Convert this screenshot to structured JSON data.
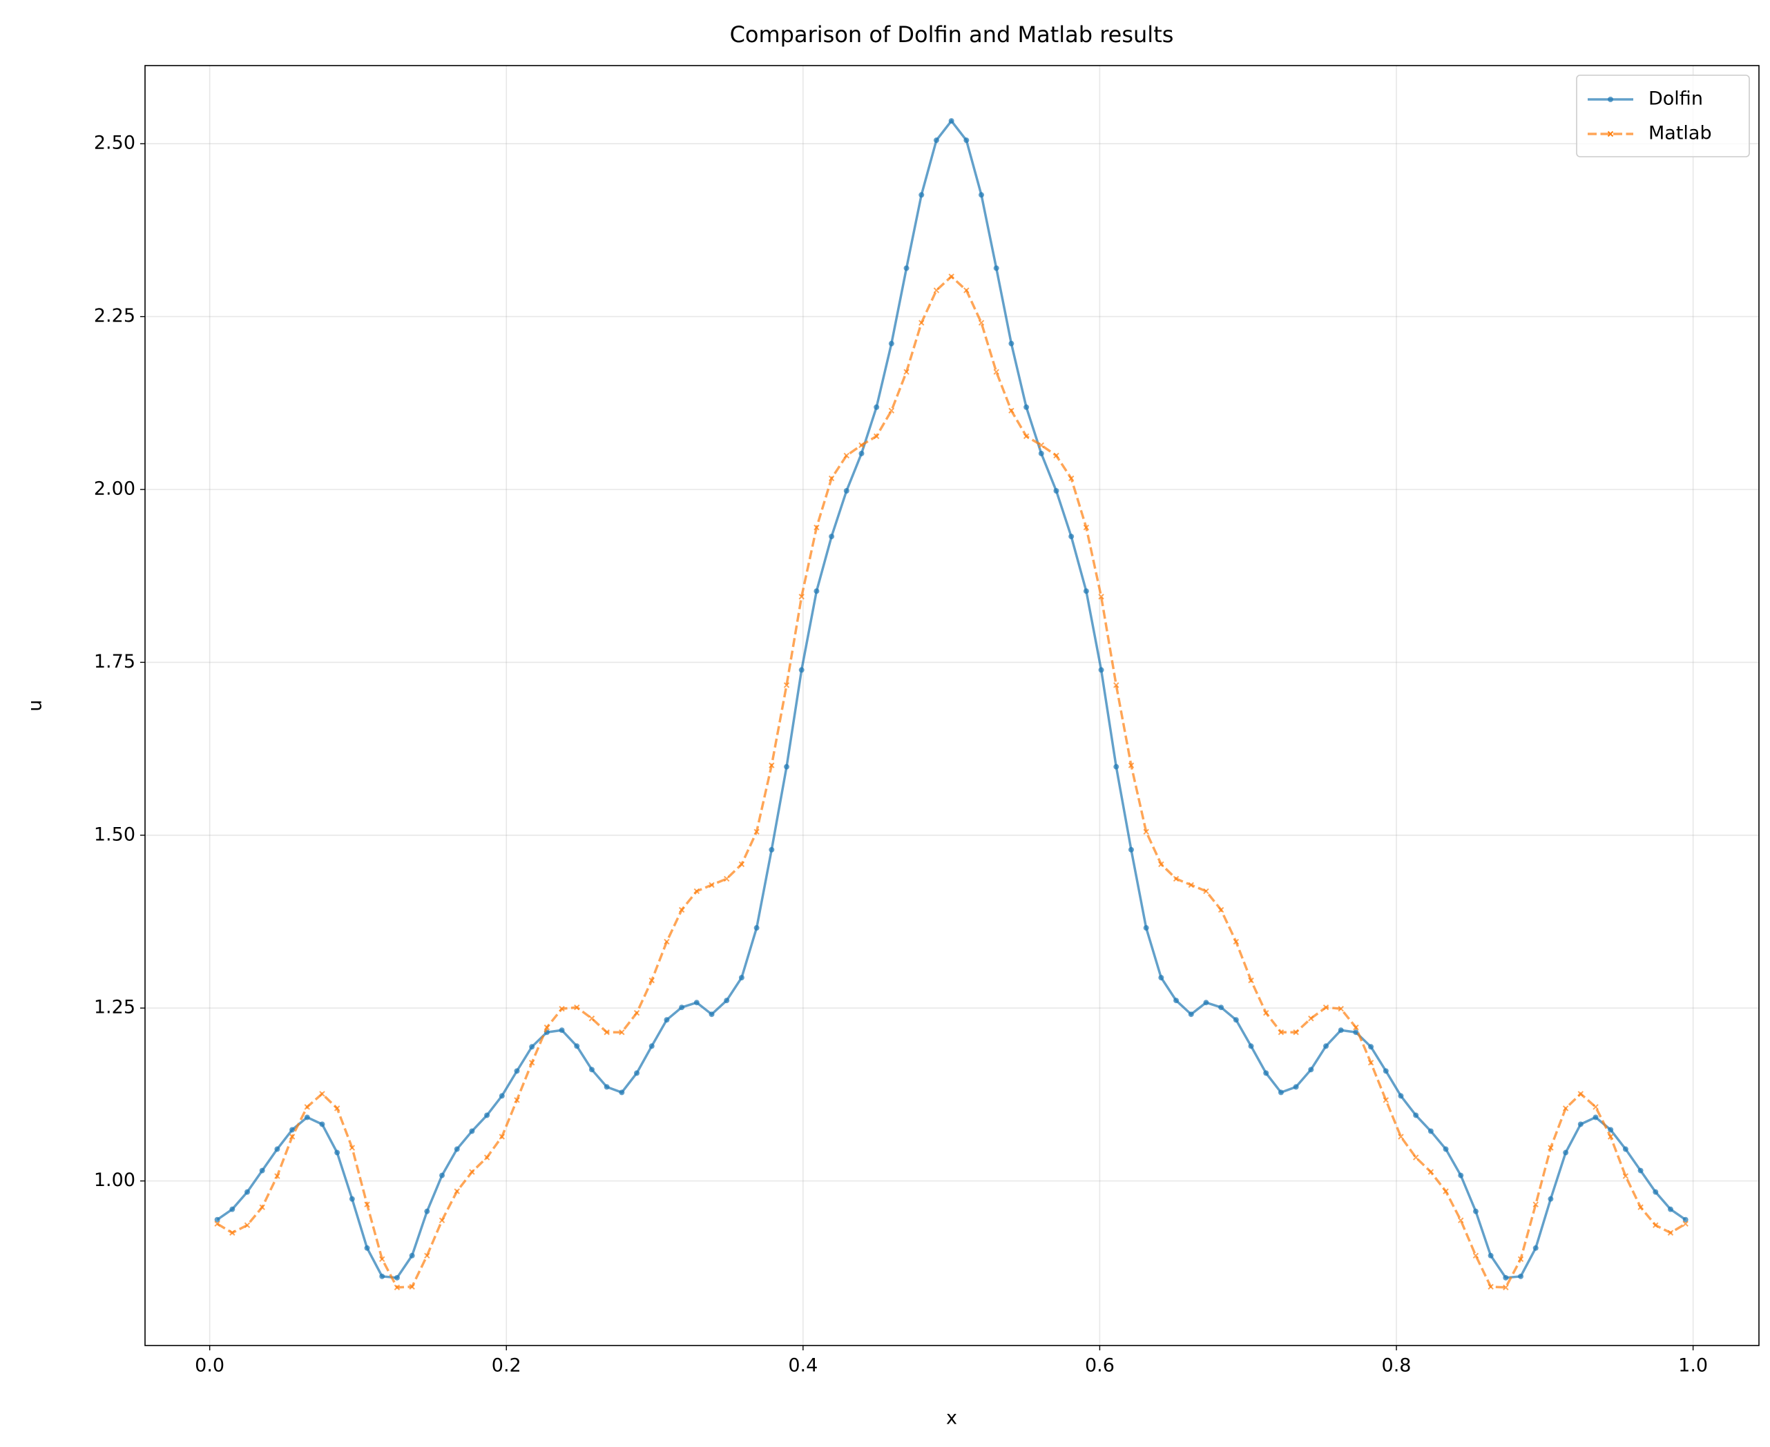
{
  "chart_data": {
    "type": "line",
    "title": "Comparison of Dolfin and Matlab results",
    "x_label": "x",
    "y_label": "u",
    "x": [
      0.0051,
      0.0152,
      0.0253,
      0.0354,
      0.0455,
      0.0556,
      0.0657,
      0.0758,
      0.0859,
      0.096,
      0.1061,
      0.1162,
      0.1263,
      0.1364,
      0.1465,
      0.1566,
      0.1667,
      0.1768,
      0.1869,
      0.197,
      0.2071,
      0.2172,
      0.2273,
      0.2374,
      0.2475,
      0.2576,
      0.2677,
      0.2778,
      0.2879,
      0.298,
      0.3081,
      0.3182,
      0.3283,
      0.3384,
      0.3485,
      0.3586,
      0.3687,
      0.3788,
      0.3889,
      0.399,
      0.4091,
      0.4192,
      0.4293,
      0.4394,
      0.4495,
      0.4596,
      0.4697,
      0.4798,
      0.4899,
      0.5,
      0.5101,
      0.5202,
      0.5303,
      0.5404,
      0.5505,
      0.5606,
      0.5707,
      0.5808,
      0.5909,
      0.601,
      0.6111,
      0.6212,
      0.6313,
      0.6414,
      0.6515,
      0.6616,
      0.6717,
      0.6818,
      0.6919,
      0.702,
      0.7121,
      0.7222,
      0.7323,
      0.7424,
      0.7525,
      0.7626,
      0.7727,
      0.7828,
      0.7929,
      0.803,
      0.8131,
      0.8232,
      0.8333,
      0.8434,
      0.8535,
      0.8636,
      0.8737,
      0.8838,
      0.8939,
      0.904,
      0.9141,
      0.9242,
      0.9343,
      0.9444,
      0.9545,
      0.9646,
      0.9747,
      0.9848,
      0.9949
    ],
    "series": [
      {
        "name": "Dolfin",
        "color": "#1f77b4",
        "marker": "circle",
        "dash": "solid",
        "values": [
          0.944,
          0.959,
          0.984,
          1.015,
          1.046,
          1.074,
          1.092,
          1.082,
          1.041,
          0.974,
          0.903,
          0.862,
          0.86,
          0.892,
          0.956,
          1.008,
          1.046,
          1.072,
          1.095,
          1.123,
          1.159,
          1.194,
          1.215,
          1.218,
          1.195,
          1.161,
          1.136,
          1.128,
          1.156,
          1.195,
          1.233,
          1.251,
          1.258,
          1.241,
          1.261,
          1.294,
          1.366,
          1.479,
          1.599,
          1.739,
          1.853,
          1.932,
          1.998,
          2.052,
          2.119,
          2.211,
          2.32,
          2.426,
          2.505,
          2.533,
          2.505,
          2.426,
          2.32,
          2.211,
          2.119,
          2.052,
          1.998,
          1.932,
          1.853,
          1.739,
          1.599,
          1.479,
          1.366,
          1.294,
          1.261,
          1.241,
          1.258,
          1.251,
          1.233,
          1.195,
          1.156,
          1.128,
          1.136,
          1.161,
          1.195,
          1.218,
          1.215,
          1.194,
          1.159,
          1.123,
          1.095,
          1.072,
          1.046,
          1.008,
          0.956,
          0.892,
          0.86,
          0.862,
          0.903,
          0.974,
          1.041,
          1.082,
          1.092,
          1.074,
          1.046,
          1.015,
          0.984,
          0.959,
          0.944
        ]
      },
      {
        "name": "Matlab",
        "color": "#ff7f0e",
        "marker": "x",
        "dash": "dashed",
        "values": [
          0.938,
          0.925,
          0.936,
          0.962,
          1.007,
          1.064,
          1.107,
          1.126,
          1.105,
          1.048,
          0.966,
          0.887,
          0.846,
          0.847,
          0.892,
          0.943,
          0.985,
          1.013,
          1.034,
          1.064,
          1.117,
          1.171,
          1.222,
          1.249,
          1.251,
          1.235,
          1.215,
          1.215,
          1.243,
          1.29,
          1.346,
          1.392,
          1.419,
          1.428,
          1.437,
          1.458,
          1.505,
          1.601,
          1.717,
          1.845,
          1.945,
          2.016,
          2.049,
          2.064,
          2.077,
          2.114,
          2.17,
          2.241,
          2.288,
          2.308,
          2.288,
          2.241,
          2.17,
          2.114,
          2.077,
          2.064,
          2.049,
          2.016,
          1.945,
          1.845,
          1.717,
          1.601,
          1.505,
          1.458,
          1.437,
          1.428,
          1.419,
          1.392,
          1.346,
          1.29,
          1.243,
          1.215,
          1.215,
          1.235,
          1.251,
          1.249,
          1.222,
          1.171,
          1.117,
          1.064,
          1.034,
          1.013,
          0.985,
          0.943,
          0.892,
          0.847,
          0.846,
          0.887,
          0.966,
          1.048,
          1.105,
          1.126,
          1.107,
          1.064,
          1.007,
          0.962,
          0.936,
          0.925,
          0.938
        ]
      }
    ],
    "xlim": [
      -0.0436,
      1.0444
    ],
    "ylim": [
      0.762,
      2.613
    ],
    "xticks": [
      {
        "value": 0,
        "label": "0.0"
      },
      0.2,
      0.4,
      0.6,
      0.8,
      {
        "value": 1,
        "label": "1.0"
      }
    ],
    "yticks": [
      {
        "value": 1,
        "label": "1.00"
      },
      1.25,
      {
        "value": 1.5,
        "label": "1.50"
      },
      1.75,
      {
        "value": 2,
        "label": "2.00"
      },
      2.25,
      {
        "value": 2.5,
        "label": "2.50"
      }
    ],
    "grid": true,
    "legend": "upper right"
  }
}
